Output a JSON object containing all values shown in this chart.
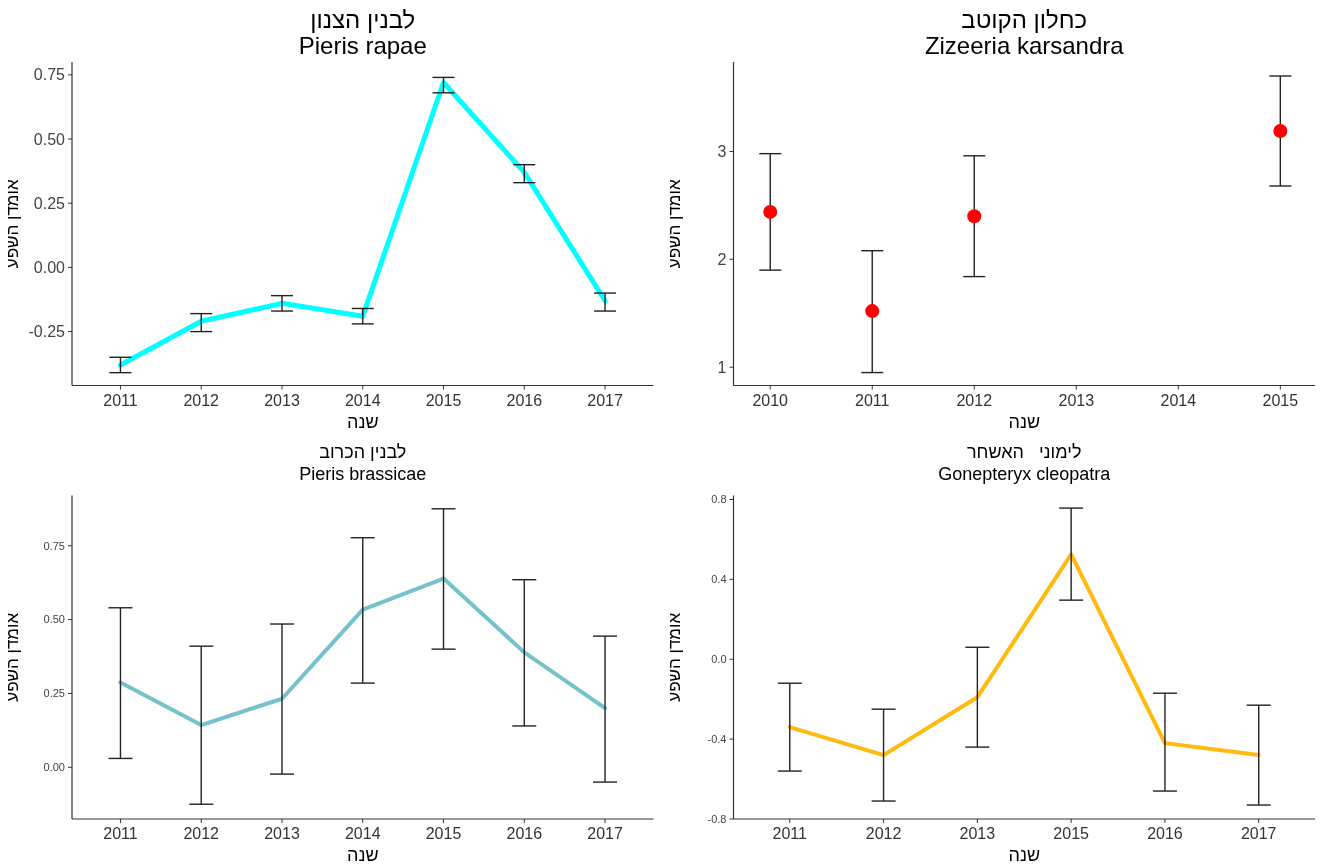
{
  "chart_data": [
    {
      "type": "line",
      "title": "לבנין הצנון",
      "subtitle": "Pieris rapae",
      "xlabel": "שנה",
      "ylabel": "אומדן השפע",
      "categories": [
        "2011",
        "2012",
        "2013",
        "2014",
        "2015",
        "2016",
        "2017"
      ],
      "ylim": [
        -0.46,
        0.8
      ],
      "yticks": [
        {
          "value": -0.25,
          "label": "-0.25"
        },
        {
          "value": 0,
          "label": "0.00"
        },
        {
          "value": 0.25,
          "label": "0.25"
        },
        {
          "value": 0.5,
          "label": "0.50"
        },
        {
          "value": 0.75,
          "label": "0.75"
        }
      ],
      "grid": false,
      "marker": "none",
      "line_style": "solid",
      "series": [
        {
          "color": "#00ffff",
          "values": [
            -0.38,
            -0.21,
            -0.14,
            -0.19,
            0.72,
            0.37,
            -0.13
          ],
          "errors": [
            [
              -0.41,
              -0.35
            ],
            [
              -0.25,
              -0.18
            ],
            [
              -0.17,
              -0.11
            ],
            [
              -0.22,
              -0.16
            ],
            [
              0.68,
              0.74
            ],
            [
              0.33,
              0.4
            ],
            [
              -0.17,
              -0.1
            ]
          ]
        }
      ]
    },
    {
      "type": "scatter",
      "title": "כחלון הקוטב",
      "subtitle": "Zizeeria karsandra",
      "xlabel": "שנה",
      "ylabel": "אומדן השפע",
      "x": [
        2010,
        2011,
        2012,
        2015
      ],
      "xlim": [
        2009.64,
        2015.34
      ],
      "xticks": [
        2010,
        2011,
        2012,
        2013,
        2014,
        2015
      ],
      "ylim": [
        0.83,
        3.83
      ],
      "yticks": [
        1,
        2,
        3
      ],
      "grid": false,
      "marker": "circle",
      "series": [
        {
          "color": "#ff0000",
          "values": [
            2.44,
            1.52,
            2.4,
            3.19
          ],
          "errors": [
            [
              1.9,
              2.98
            ],
            [
              0.95,
              2.08
            ],
            [
              1.84,
              2.96
            ],
            [
              2.68,
              3.7
            ]
          ]
        }
      ]
    },
    {
      "type": "line",
      "title": "לבנין הכרוב",
      "subtitle": "Pieris brassicae",
      "xlabel": "שנה",
      "ylabel": "אומדן השפע",
      "categories": [
        "2011",
        "2012",
        "2013",
        "2014",
        "2015",
        "2016",
        "2017"
      ],
      "ylim": [
        -0.175,
        0.92
      ],
      "yticks": [
        {
          "value": 0,
          "label": "0.00"
        },
        {
          "value": 0.25,
          "label": "0.25"
        },
        {
          "value": 0.5,
          "label": "0.50"
        },
        {
          "value": 0.75,
          "label": "0.75"
        }
      ],
      "grid": false,
      "marker": "none",
      "line_style": "solid",
      "series": [
        {
          "color": "#74c2cc",
          "values": [
            0.287,
            0.143,
            0.232,
            0.534,
            0.639,
            0.389,
            0.2
          ],
          "errors": [
            [
              0.03,
              0.54
            ],
            [
              -0.125,
              0.41
            ],
            [
              -0.023,
              0.485
            ],
            [
              0.285,
              0.777
            ],
            [
              0.4,
              0.875
            ],
            [
              0.14,
              0.635
            ],
            [
              -0.05,
              0.444
            ]
          ]
        }
      ]
    },
    {
      "type": "line",
      "title": "לימוני   האשחר",
      "subtitle": "Gonepteryx cleopatra",
      "xlabel": "שנה",
      "ylabel": "אומדן השפע",
      "categories": [
        "2011",
        "2012",
        "2013",
        "2015",
        "2016",
        "2017"
      ],
      "ylim": [
        -0.8,
        0.82
      ],
      "yticks": [
        {
          "value": -0.8,
          "label": "-0.8"
        },
        {
          "value": -0.4,
          "label": "-0.4"
        },
        {
          "value": 0,
          "label": "0.0"
        },
        {
          "value": 0.4,
          "label": "0.4"
        },
        {
          "value": 0.8,
          "label": "0.8"
        }
      ],
      "grid": false,
      "marker": "none",
      "line_style": "solid",
      "series": [
        {
          "color": "#ffb90f",
          "values": [
            -0.34,
            -0.48,
            -0.19,
            0.525,
            -0.42,
            -0.48
          ],
          "errors": [
            [
              -0.56,
              -0.12
            ],
            [
              -0.71,
              -0.25
            ],
            [
              -0.44,
              0.06
            ],
            [
              0.296,
              0.757
            ],
            [
              -0.66,
              -0.17
            ],
            [
              -0.73,
              -0.23
            ]
          ]
        }
      ]
    }
  ]
}
